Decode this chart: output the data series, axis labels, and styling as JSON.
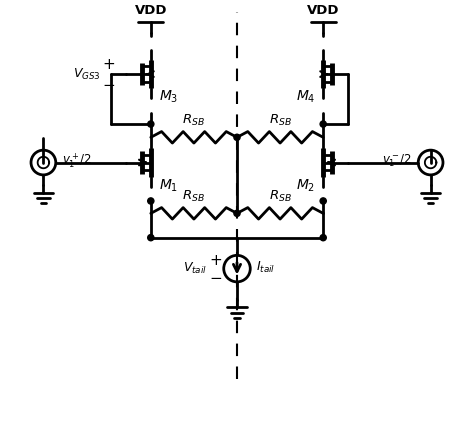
{
  "bg_color": "#ffffff",
  "line_color": "#000000",
  "lw": 2.0,
  "figsize": [
    4.74,
    4.24
  ],
  "dpi": 100,
  "xlim": [
    0,
    10
  ],
  "ylim": [
    0,
    9.5
  ]
}
